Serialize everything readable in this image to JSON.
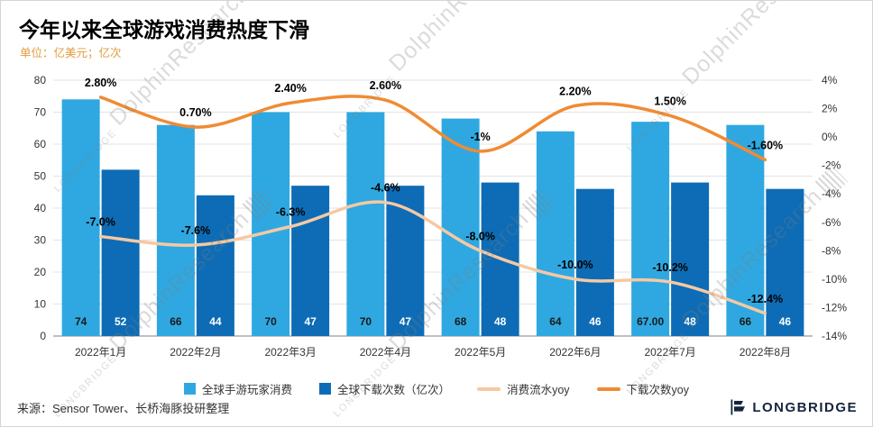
{
  "title": "今年以来全球游戏消费热度下滑",
  "subtitle": "单位：亿美元；亿次",
  "source": "来源：Sensor Tower、长桥海豚投研整理",
  "watermark": {
    "brand": "LONGBRIDGE",
    "text": "DolphinResearch"
  },
  "brand": {
    "name": "LONGBRIDGE"
  },
  "colors": {
    "bar_light": "#2FA8E1",
    "bar_dark": "#0D6CB5",
    "line_peach": "#F5C9A3",
    "line_orange": "#F08B33",
    "subtitle_orange": "#E09C3C",
    "grid": "#E3E3E3",
    "axis": "#808080",
    "text": "#1A1A1A",
    "brand_navy": "#16243E",
    "watermark_gray": "#B9B9B9"
  },
  "chart_data": {
    "type": "bar",
    "subtype": "combo-bar-line-dual-axis",
    "title": "今年以来全球游戏消费热度下滑",
    "categories": [
      "2022年1月",
      "2022年2月",
      "2022年3月",
      "2022年4月",
      "2022年5月",
      "2022年6月",
      "2022年7月",
      "2022年8月"
    ],
    "series": [
      {
        "name": "全球手游玩家消费",
        "type": "bar",
        "axis": "left",
        "color": "#2FA8E1",
        "values": [
          74,
          66,
          70,
          70,
          68,
          64,
          67,
          66
        ],
        "labels": [
          "74",
          "66",
          "70",
          "70",
          "68",
          "64",
          "67.00",
          "66"
        ],
        "label_color": "#1A1A1A"
      },
      {
        "name": "全球下载次数（亿次）",
        "type": "bar",
        "axis": "left",
        "color": "#0D6CB5",
        "values": [
          52,
          44,
          47,
          47,
          48,
          46,
          48,
          46
        ],
        "labels": [
          "52",
          "44",
          "47",
          "47",
          "48",
          "46",
          "48",
          "46"
        ],
        "label_color": "#FFFFFF"
      },
      {
        "name": "消费流水yoy",
        "type": "line",
        "axis": "right",
        "color": "#F5C9A3",
        "values": [
          -7.0,
          -7.6,
          -6.3,
          -4.6,
          -8.0,
          -10.0,
          -10.2,
          -12.4
        ],
        "labels": [
          "-7.0%",
          "-7.6%",
          "-6.3%",
          "-4.6%",
          "-8.0%",
          "-10.0%",
          "-10.2%",
          "-12.4%"
        ],
        "label_color": "#000000"
      },
      {
        "name": "下载次数yoy",
        "type": "line",
        "axis": "right",
        "color": "#F08B33",
        "values": [
          2.8,
          0.7,
          2.4,
          2.6,
          -1,
          2.2,
          1.5,
          -1.6
        ],
        "labels": [
          "2.80%",
          "0.70%",
          "2.40%",
          "2.60%",
          "-1%",
          "2.20%",
          "1.50%",
          "-1.60%"
        ],
        "label_color": "#000000"
      }
    ],
    "left_axis": {
      "min": 0,
      "max": 80,
      "step": 10,
      "ticks": [
        "0",
        "10",
        "20",
        "30",
        "40",
        "50",
        "60",
        "70",
        "80"
      ]
    },
    "right_axis": {
      "min": -14,
      "max": 4,
      "step": 2,
      "ticks": [
        "4%",
        "2%",
        "0%",
        "-2%",
        "-4%",
        "-6%",
        "-8%",
        "-10%",
        "-12%",
        "-14%"
      ]
    },
    "grid": true,
    "legend_position": "bottom"
  }
}
